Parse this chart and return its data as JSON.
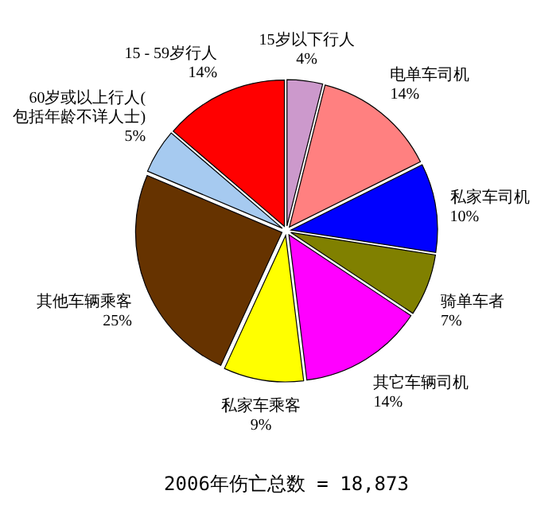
{
  "chart_data": {
    "type": "pie",
    "title": "2006年伤亡总数 = 18,873",
    "categories": [
      "15岁以下行人",
      "电单车司机",
      "私家车司机",
      "骑单车者",
      "其它车辆司机",
      "私家车乘客",
      "其他车辆乘客",
      "60岁或以上行人(包括年龄不详人士)",
      "15 - 59岁行人"
    ],
    "values": [
      4,
      14,
      10,
      7,
      14,
      9,
      25,
      5,
      14
    ],
    "value_labels": [
      "4%",
      "14%",
      "10%",
      "7%",
      "14%",
      "9%",
      "25%",
      "5%",
      "14%"
    ],
    "colors": [
      "#cc99cc",
      "#ff8080",
      "#0000ff",
      "#808000",
      "#ff00ff",
      "#ffff00",
      "#663300",
      "#a6caf0",
      "#ff0000"
    ]
  }
}
